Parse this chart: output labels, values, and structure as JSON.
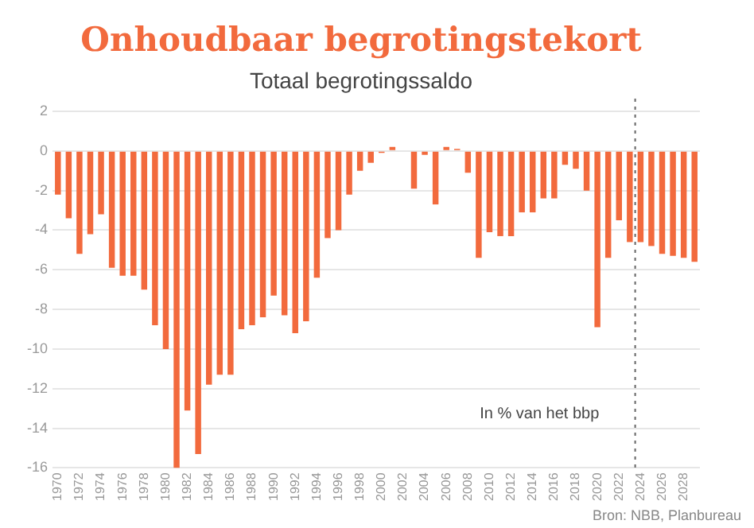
{
  "chart_data": {
    "type": "bar",
    "title": "Onhoudbaar begrotingstekort",
    "subtitle": "Totaal begrotingssaldo",
    "x": [
      1970,
      1971,
      1972,
      1973,
      1974,
      1975,
      1976,
      1977,
      1978,
      1979,
      1980,
      1981,
      1982,
      1983,
      1984,
      1985,
      1986,
      1987,
      1988,
      1989,
      1990,
      1991,
      1992,
      1993,
      1994,
      1995,
      1996,
      1997,
      1998,
      1999,
      2000,
      2001,
      2002,
      2003,
      2004,
      2005,
      2006,
      2007,
      2008,
      2009,
      2010,
      2011,
      2012,
      2013,
      2014,
      2015,
      2016,
      2017,
      2018,
      2019,
      2020,
      2021,
      2022,
      2023,
      2024,
      2025,
      2026,
      2027,
      2028,
      2029
    ],
    "values": [
      -2.2,
      -3.4,
      -5.2,
      -4.2,
      -3.2,
      -5.9,
      -6.3,
      -6.3,
      -7.0,
      -8.8,
      -10.0,
      -16.0,
      -13.1,
      -15.3,
      -11.8,
      -11.3,
      -11.3,
      -9.0,
      -8.8,
      -8.4,
      -7.3,
      -8.3,
      -9.2,
      -8.6,
      -6.4,
      -4.4,
      -4.0,
      -2.2,
      -1.0,
      -0.6,
      -0.1,
      0.2,
      0,
      -1.9,
      -0.2,
      -2.7,
      0.2,
      0.1,
      -1.1,
      -5.4,
      -4.1,
      -4.3,
      -4.3,
      -3.1,
      -3.1,
      -2.4,
      -2.4,
      -0.7,
      -0.9,
      -2.0,
      -8.9,
      -5.4,
      -3.5,
      -4.6,
      -4.6,
      -4.8,
      -5.2,
      -5.3,
      -5.4,
      -5.6
    ],
    "color": "#f26a3d",
    "xlim": [
      1969.5,
      2029.5
    ],
    "xticks": [
      1970,
      1972,
      1974,
      1976,
      1978,
      1980,
      1982,
      1984,
      1986,
      1988,
      1990,
      1992,
      1994,
      1996,
      1998,
      2000,
      2002,
      2004,
      2006,
      2008,
      2010,
      2012,
      2014,
      2016,
      2018,
      2020,
      2022,
      2024,
      2026,
      2028
    ],
    "ylim": [
      -16,
      2
    ],
    "yticks": [
      -16,
      -14,
      -12,
      -10,
      -8,
      -6,
      -4,
      -2,
      0,
      2
    ],
    "grid": "y",
    "legend": false,
    "ref_lines": [
      {
        "axis": "x",
        "value": 2023.5,
        "color": "#666666",
        "line_style": "dotted"
      }
    ],
    "annotations": [
      "In % van het bbp",
      "Bron: NBB, Planbureau"
    ]
  }
}
